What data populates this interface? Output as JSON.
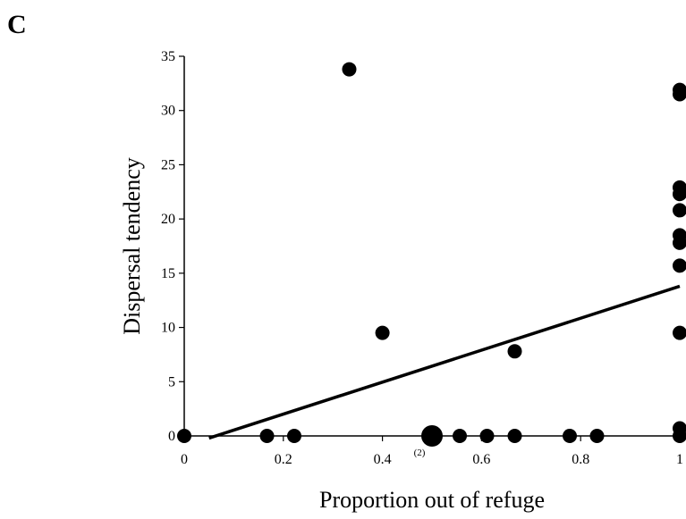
{
  "panel_label": "C",
  "chart_data": {
    "type": "scatter",
    "title": "",
    "xlabel": "Proportion out of refuge",
    "ylabel": "Dispersal tendency",
    "xlim": [
      0,
      1
    ],
    "ylim": [
      0,
      35
    ],
    "x_ticks": [
      0,
      0.2,
      0.4,
      0.6,
      0.8,
      1
    ],
    "x_tick_labels": [
      "0",
      "0.2",
      "0.4",
      "0.6",
      "0.8",
      "1"
    ],
    "y_ticks": [
      0,
      5,
      10,
      15,
      20,
      25,
      30,
      35
    ],
    "y_tick_labels": [
      "0",
      "5",
      "10",
      "15",
      "20",
      "25",
      "30",
      "35"
    ],
    "grid": false,
    "legend": "none",
    "point_color": "#000000",
    "points": [
      {
        "x": 0,
        "y": 0
      },
      {
        "x": 0.167,
        "y": 0
      },
      {
        "x": 0.222,
        "y": 0
      },
      {
        "x": 0.333,
        "y": 33.8
      },
      {
        "x": 0.4,
        "y": 9.5
      },
      {
        "x": 0.5,
        "y": 0,
        "count": 2,
        "label": "(2)"
      },
      {
        "x": 0.556,
        "y": 0
      },
      {
        "x": 0.611,
        "y": 0
      },
      {
        "x": 0.667,
        "y": 0
      },
      {
        "x": 0.667,
        "y": 7.8
      },
      {
        "x": 0.778,
        "y": 0
      },
      {
        "x": 0.833,
        "y": 0
      },
      {
        "x": 1,
        "y": 0
      },
      {
        "x": 1,
        "y": 0.7
      },
      {
        "x": 1,
        "y": 9.5
      },
      {
        "x": 1,
        "y": 15.7
      },
      {
        "x": 1,
        "y": 17.8
      },
      {
        "x": 1,
        "y": 18.5
      },
      {
        "x": 1,
        "y": 20.8
      },
      {
        "x": 1,
        "y": 22.3
      },
      {
        "x": 1,
        "y": 22.9
      },
      {
        "x": 1,
        "y": 31.5
      },
      {
        "x": 1,
        "y": 31.9
      }
    ],
    "regression_line": {
      "x": [
        0.05,
        1
      ],
      "y": [
        -0.2,
        13.8
      ]
    }
  }
}
